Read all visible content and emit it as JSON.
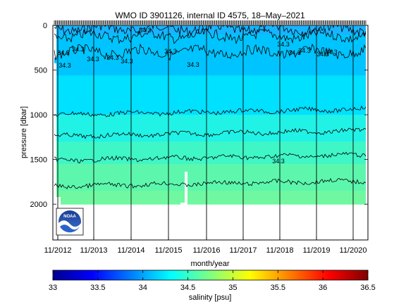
{
  "chart_data": {
    "type": "heatmap",
    "title": "WMO ID 3901126, internal ID 4575, 18–May–2021",
    "xlabel": "month/year",
    "ylabel": "pressure [dbar]",
    "x_ticks": [
      "11/2012",
      "11/2013",
      "11/2014",
      "11/2015",
      "11/2016",
      "11/2017",
      "11/2018",
      "11/2019",
      "11/2020"
    ],
    "y_ticks": [
      "0",
      "500",
      "1000",
      "1500",
      "2000"
    ],
    "y_tick_values": [
      0,
      500,
      1000,
      1500,
      2000
    ],
    "ylim": [
      2400,
      0
    ],
    "colorbar": {
      "label": "salinity [psu]",
      "ticks": [
        "33",
        "33.5",
        "34",
        "34.5",
        "35",
        "35.5",
        "36",
        "36.5"
      ],
      "range": [
        33,
        36.5
      ]
    },
    "contour_labels": [
      "34.3",
      "34.3",
      "34.3",
      "34.3",
      "34.3",
      "34.3",
      "34.3",
      "34.3",
      "34.3",
      "34.3",
      "34.3",
      "34.3",
      "34.3",
      "34.3",
      "34.3"
    ],
    "contour_label_values": [
      34.3
    ],
    "layers": [
      {
        "name": "",
        "depth_top": 0,
        "depth_bottom": 100,
        "salinity": 34.25,
        "color": "#17b4ff"
      },
      {
        "name": "",
        "depth_top": 100,
        "depth_bottom": 560,
        "salinity": 34.3,
        "color": "#00c4ff"
      },
      {
        "name": "",
        "depth_top": 560,
        "depth_bottom": 1000,
        "salinity": 34.4,
        "color": "#00e0ff"
      },
      {
        "name": "",
        "depth_top": 1000,
        "depth_bottom": 1300,
        "salinity": 34.5,
        "color": "#21f2e6"
      },
      {
        "name": "",
        "depth_top": 1300,
        "depth_bottom": 1550,
        "salinity": 34.6,
        "color": "#3ff6c6"
      },
      {
        "name": "",
        "depth_top": 1550,
        "depth_bottom": 1850,
        "salinity": 34.65,
        "color": "#5cf7ad"
      },
      {
        "name": "",
        "depth_top": 1850,
        "depth_bottom": 2000,
        "salinity": 34.7,
        "color": "#6ff8a0"
      }
    ],
    "contour_depths": [
      35,
      120,
      300,
      1000,
      1240,
      1510,
      1800
    ],
    "profile_count": 300,
    "vertical_lines_years": [
      "11/2012",
      "11/2013",
      "11/2014",
      "11/2015",
      "11/2016",
      "11/2017",
      "11/2018",
      "11/2019",
      "11/2020"
    ],
    "grid": false,
    "legend": "none",
    "logo_text": "NOAA"
  }
}
